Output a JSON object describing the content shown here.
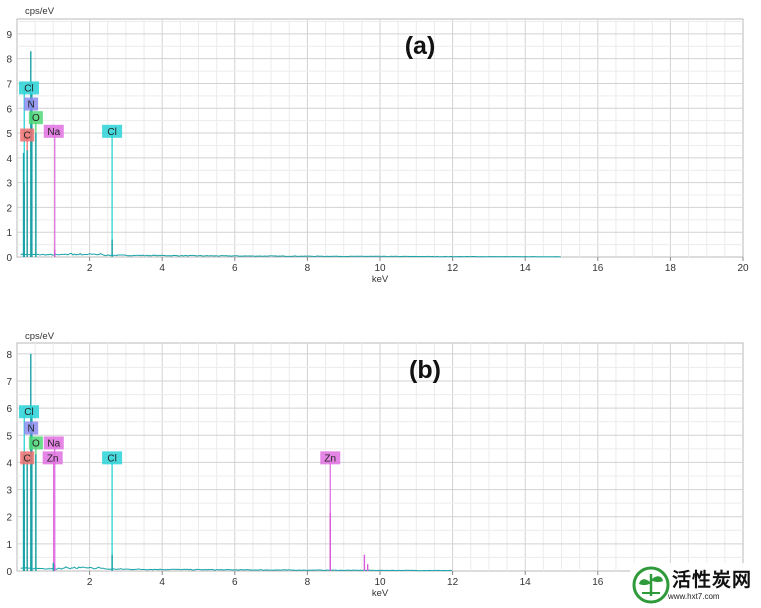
{
  "chart_data": [
    {
      "type": "line",
      "title": "(a)",
      "ylabel": "cps/eV",
      "xlabel": "keV",
      "xlim": [
        0,
        20
      ],
      "ylim": [
        0,
        9.6
      ],
      "x_ticks": [
        2,
        4,
        6,
        8,
        10,
        12,
        14,
        16,
        18,
        20
      ],
      "y_ticks": [
        0,
        1,
        2,
        3,
        4,
        5,
        6,
        7,
        8,
        9
      ],
      "grid": true,
      "spectrum_color": "#1aa3a8",
      "peaks": [
        {
          "x": 0.18,
          "y": 4.2
        },
        {
          "x": 0.2,
          "y": 3.0
        },
        {
          "x": 0.28,
          "y": 4.3
        },
        {
          "x": 0.38,
          "y": 8.3
        },
        {
          "x": 0.41,
          "y": 6.6
        },
        {
          "x": 0.52,
          "y": 5.0
        },
        {
          "x": 1.04,
          "y": 0.3
        },
        {
          "x": 2.62,
          "y": 0.7
        },
        {
          "x": 8.63,
          "y": 0.05
        }
      ],
      "element_markers": [
        {
          "label": "C",
          "energy": 0.28,
          "level": 4.9,
          "color": "#f07070"
        },
        {
          "label": "N",
          "energy": 0.39,
          "level": 6.15,
          "color": "#8c8cf0"
        },
        {
          "label": "O",
          "energy": 0.52,
          "level": 5.6,
          "color": "#50d878"
        },
        {
          "label": "Cl",
          "energy": 0.2,
          "level": 6.8,
          "color": "#2ad4d8"
        },
        {
          "label": "Na",
          "energy": 1.04,
          "level": 5.05,
          "color": "#e070e0"
        },
        {
          "label": "Cl",
          "energy": 2.62,
          "level": 5.05,
          "color": "#2ad4d8"
        }
      ]
    },
    {
      "type": "line",
      "title": "(b)",
      "ylabel": "cps/eV",
      "xlabel": "keV",
      "xlim": [
        0,
        20
      ],
      "ylim": [
        0,
        8.4
      ],
      "x_ticks": [
        2,
        4,
        6,
        8,
        10,
        12,
        14,
        16
      ],
      "y_ticks": [
        0,
        1,
        2,
        3,
        4,
        5,
        6,
        7,
        8
      ],
      "grid": true,
      "spectrum_color": "#1aa3a8",
      "peaks": [
        {
          "x": 0.18,
          "y": 4.3
        },
        {
          "x": 0.2,
          "y": 3.0
        },
        {
          "x": 0.28,
          "y": 4.2
        },
        {
          "x": 0.38,
          "y": 8.0
        },
        {
          "x": 0.41,
          "y": 5.8
        },
        {
          "x": 0.52,
          "y": 4.3
        },
        {
          "x": 1.0,
          "y": 0.3
        },
        {
          "x": 1.04,
          "y": 0.25
        },
        {
          "x": 2.62,
          "y": 0.6
        },
        {
          "x": 8.63,
          "y": 2.15
        },
        {
          "x": 9.57,
          "y": 0.6
        },
        {
          "x": 9.66,
          "y": 0.25
        }
      ],
      "element_markers": [
        {
          "label": "C",
          "energy": 0.28,
          "level": 4.15,
          "color": "#f07070"
        },
        {
          "label": "N",
          "energy": 0.39,
          "level": 5.25,
          "color": "#8c8cf0"
        },
        {
          "label": "O",
          "energy": 0.52,
          "level": 4.7,
          "color": "#50d878"
        },
        {
          "label": "Cl",
          "energy": 0.2,
          "level": 5.85,
          "color": "#2ad4d8"
        },
        {
          "label": "Na",
          "energy": 1.04,
          "level": 4.7,
          "color": "#e070e0"
        },
        {
          "label": "Zn",
          "energy": 1.01,
          "level": 4.15,
          "color": "#e070e0"
        },
        {
          "label": "Cl",
          "energy": 2.62,
          "level": 4.15,
          "color": "#2ad4d8"
        },
        {
          "label": "Zn",
          "energy": 8.63,
          "level": 4.15,
          "color": "#e070e0"
        }
      ]
    }
  ],
  "watermark": {
    "title": "活性炭网",
    "url": "www.hxt7.com",
    "icon": "leaf-icon"
  }
}
